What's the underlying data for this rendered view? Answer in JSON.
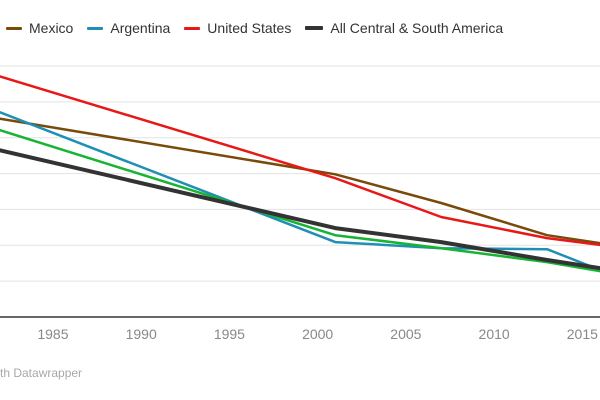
{
  "chart_data": {
    "type": "line",
    "title": "",
    "xlabel": "",
    "ylabel": "",
    "xlim": [
      1982,
      2016
    ],
    "ylim": [
      0,
      7
    ],
    "grid": true,
    "legend_position": "top-left",
    "x_ticks": [
      1985,
      1990,
      1995,
      2000,
      2005,
      2010,
      2015
    ],
    "x_tick_labels": [
      "1985",
      "1990",
      "1995",
      "2000",
      "2005",
      "2010",
      "2015"
    ],
    "y_gridlines": [
      1,
      2,
      3,
      4,
      5,
      6,
      7
    ],
    "series": [
      {
        "name": "Mexico",
        "color": "#7a4a0a",
        "in_legend": true,
        "width": "normal",
        "x": [
          1982,
          2001,
          2007,
          2013,
          2016
        ],
        "y": [
          5.53,
          3.98,
          3.18,
          2.28,
          2.06
        ]
      },
      {
        "name": "Argentina",
        "color": "#1f8fb4",
        "in_legend": true,
        "width": "normal",
        "x": [
          1982,
          2001,
          2007,
          2013,
          2016
        ],
        "y": [
          5.71,
          2.09,
          1.92,
          1.89,
          1.31
        ]
      },
      {
        "name": "United States",
        "color": "#e81818",
        "in_legend": true,
        "width": "normal",
        "x": [
          1982,
          2001,
          2007,
          2013,
          2016
        ],
        "y": [
          6.71,
          3.87,
          2.79,
          2.2,
          2.01
        ]
      },
      {
        "name": "",
        "color": "#17b335",
        "in_legend": false,
        "width": "normal",
        "x": [
          1982,
          2001,
          2007,
          2013,
          2016
        ],
        "y": [
          5.21,
          2.28,
          1.92,
          1.53,
          1.28
        ]
      },
      {
        "name": "All Central & South America",
        "color": "#333333",
        "in_legend": true,
        "width": "thick",
        "x": [
          1982,
          2001,
          2007,
          2013,
          2016
        ],
        "y": [
          4.65,
          2.48,
          2.09,
          1.59,
          1.36
        ]
      }
    ]
  },
  "legend": {
    "items": [
      {
        "label": "Mexico",
        "color": "#7a4a0a"
      },
      {
        "label": "Argentina",
        "color": "#1f8fb4"
      },
      {
        "label": "United States",
        "color": "#e81818"
      },
      {
        "label": "All Central & South America",
        "color": "#333333"
      }
    ]
  },
  "footer": {
    "credit": "th Datawrapper"
  }
}
